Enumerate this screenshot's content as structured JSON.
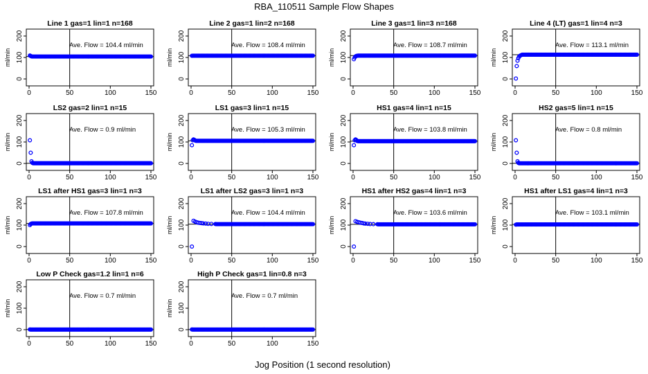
{
  "figure": {
    "title": "RBA_110511  Sample Flow Shapes",
    "xlabel": "Jog Position (1 second resolution)"
  },
  "colors": {
    "points": "#0000ff",
    "axes": "#000000",
    "background": "#ffffff"
  },
  "chart_data": [
    {
      "type": "scatter",
      "title": "Line 1 gas=1 lin=1 n=168",
      "ylabel": "ml/min",
      "annotation": "Ave. Flow = 104.4  ml/min",
      "xlim": [
        0,
        150
      ],
      "ylim": [
        0,
        200
      ],
      "xticks": [
        "0",
        "50",
        "100",
        "150"
      ],
      "yticks": [
        "0",
        "100",
        "200"
      ],
      "vline_x": 50,
      "hline_y": 104.4,
      "points": [
        [
          1,
          109
        ],
        [
          2,
          107
        ],
        [
          3,
          105
        ],
        [
          4,
          104.5
        ],
        [
          5,
          104.4
        ]
      ],
      "steady": [
        5,
        150,
        104.4
      ]
    },
    {
      "type": "scatter",
      "title": "Line 2 gas=1 lin=2 n=168",
      "ylabel": "ml/min",
      "annotation": "Ave. Flow = 108.4  ml/min",
      "xlim": [
        0,
        150
      ],
      "ylim": [
        0,
        200
      ],
      "xticks": [
        "0",
        "50",
        "100",
        "150"
      ],
      "yticks": [
        "0",
        "100",
        "200"
      ],
      "vline_x": 50,
      "hline_y": 108.4,
      "points": [
        [
          1,
          108
        ],
        [
          2,
          108.4
        ]
      ],
      "steady": [
        2,
        150,
        108.4
      ]
    },
    {
      "type": "scatter",
      "title": "Line 3 gas=1 lin=3 n=168",
      "ylabel": "ml/min",
      "annotation": "Ave. Flow = 108.7  ml/min",
      "xlim": [
        0,
        150
      ],
      "ylim": [
        0,
        200
      ],
      "xticks": [
        "0",
        "50",
        "100",
        "150"
      ],
      "yticks": [
        "0",
        "100",
        "200"
      ],
      "vline_x": 50,
      "hline_y": 108.7,
      "points": [
        [
          1,
          92
        ],
        [
          2,
          100
        ],
        [
          3,
          105
        ],
        [
          4,
          107
        ],
        [
          5,
          108
        ]
      ],
      "steady": [
        5,
        150,
        108.7
      ]
    },
    {
      "type": "scatter",
      "title": "Line 4 (LT) gas=1 lin=4 n=3",
      "ylabel": "ml/min",
      "annotation": "Ave. Flow = 113.1  ml/min",
      "xlim": [
        0,
        150
      ],
      "ylim": [
        0,
        200
      ],
      "xticks": [
        "0",
        "50",
        "100",
        "150"
      ],
      "yticks": [
        "0",
        "100",
        "200"
      ],
      "vline_x": 50,
      "hline_y": 113.1,
      "points": [
        [
          1,
          2
        ],
        [
          2,
          60
        ],
        [
          3,
          85
        ],
        [
          4,
          97
        ],
        [
          5,
          104
        ],
        [
          6,
          108
        ],
        [
          7,
          110
        ],
        [
          8,
          112
        ]
      ],
      "steady": [
        8,
        150,
        113.1
      ]
    },
    {
      "type": "scatter",
      "title": "LS2 gas=2 lin=1 n=15",
      "ylabel": "ml/min",
      "annotation": "Ave. Flow =  0.9  ml/min",
      "xlim": [
        0,
        150
      ],
      "ylim": [
        0,
        200
      ],
      "xticks": [
        "0",
        "50",
        "100",
        "150"
      ],
      "yticks": [
        "0",
        "100",
        "200"
      ],
      "vline_x": 50,
      "hline_y": 0.9,
      "points": [
        [
          1,
          108
        ],
        [
          2,
          50
        ],
        [
          3,
          10
        ],
        [
          4,
          3
        ],
        [
          5,
          1
        ]
      ],
      "steady": [
        5,
        150,
        0.9
      ]
    },
    {
      "type": "scatter",
      "title": "LS1 gas=3 lin=1 n=15",
      "ylabel": "ml/min",
      "annotation": "Ave. Flow = 105.3  ml/min",
      "xlim": [
        0,
        150
      ],
      "ylim": [
        0,
        200
      ],
      "xticks": [
        "0",
        "50",
        "100",
        "150"
      ],
      "yticks": [
        "0",
        "100",
        "200"
      ],
      "vline_x": 50,
      "hline_y": 105.3,
      "points": [
        [
          1,
          85
        ],
        [
          2,
          108
        ],
        [
          3,
          112
        ],
        [
          4,
          110
        ],
        [
          5,
          107
        ]
      ],
      "steady": [
        5,
        150,
        105.3
      ]
    },
    {
      "type": "scatter",
      "title": "HS1 gas=4 lin=1 n=15",
      "ylabel": "ml/min",
      "annotation": "Ave. Flow = 103.8  ml/min",
      "xlim": [
        0,
        150
      ],
      "ylim": [
        0,
        200
      ],
      "xticks": [
        "0",
        "50",
        "100",
        "150"
      ],
      "yticks": [
        "0",
        "100",
        "200"
      ],
      "vline_x": 50,
      "hline_y": 103.8,
      "points": [
        [
          1,
          85
        ],
        [
          2,
          108
        ],
        [
          3,
          112
        ],
        [
          4,
          109
        ],
        [
          5,
          105
        ]
      ],
      "steady": [
        5,
        150,
        103.8
      ]
    },
    {
      "type": "scatter",
      "title": "HS2 gas=5 lin=1 n=15",
      "ylabel": "ml/min",
      "annotation": "Ave. Flow =  0.8  ml/min",
      "xlim": [
        0,
        150
      ],
      "ylim": [
        0,
        200
      ],
      "xticks": [
        "0",
        "50",
        "100",
        "150"
      ],
      "yticks": [
        "0",
        "100",
        "200"
      ],
      "vline_x": 50,
      "hline_y": 0.8,
      "points": [
        [
          1,
          108
        ],
        [
          2,
          50
        ],
        [
          3,
          10
        ],
        [
          4,
          3
        ],
        [
          5,
          1
        ]
      ],
      "steady": [
        5,
        150,
        0.8
      ]
    },
    {
      "type": "scatter",
      "title": "LS1 after HS1 gas=3 lin=1 n=3",
      "ylabel": "ml/min",
      "annotation": "Ave. Flow = 107.8  ml/min",
      "xlim": [
        0,
        150
      ],
      "ylim": [
        0,
        200
      ],
      "xticks": [
        "0",
        "50",
        "100",
        "150"
      ],
      "yticks": [
        "0",
        "100",
        "200"
      ],
      "vline_x": 50,
      "hline_y": 107.8,
      "points": [
        [
          1,
          100
        ],
        [
          2,
          105
        ],
        [
          3,
          107
        ]
      ],
      "steady": [
        3,
        150,
        107.8
      ]
    },
    {
      "type": "scatter",
      "title": "LS1 after LS2 gas=3 lin=1 n=3",
      "ylabel": "ml/min",
      "annotation": "Ave. Flow = 104.4  ml/min",
      "xlim": [
        0,
        150
      ],
      "ylim": [
        0,
        200
      ],
      "xticks": [
        "0",
        "50",
        "100",
        "150"
      ],
      "yticks": [
        "0",
        "100",
        "200"
      ],
      "vline_x": 50,
      "hline_y": 104.4,
      "points": [
        [
          1,
          0
        ],
        [
          3,
          120
        ],
        [
          5,
          116
        ],
        [
          7,
          113
        ],
        [
          9,
          111
        ],
        [
          11,
          110
        ],
        [
          13,
          109
        ],
        [
          15,
          108
        ],
        [
          18,
          107
        ],
        [
          21,
          106
        ],
        [
          25,
          105.5
        ],
        [
          30,
          105
        ]
      ],
      "steady": [
        30,
        150,
        104.4
      ]
    },
    {
      "type": "scatter",
      "title": "HS1 after HS2 gas=4 lin=1 n=3",
      "ylabel": "ml/min",
      "annotation": "Ave. Flow = 103.6  ml/min",
      "xlim": [
        0,
        150
      ],
      "ylim": [
        0,
        200
      ],
      "xticks": [
        "0",
        "50",
        "100",
        "150"
      ],
      "yticks": [
        "0",
        "100",
        "200"
      ],
      "vline_x": 50,
      "hline_y": 103.6,
      "points": [
        [
          1,
          0
        ],
        [
          3,
          118
        ],
        [
          5,
          115
        ],
        [
          7,
          113
        ],
        [
          9,
          111
        ],
        [
          11,
          110
        ],
        [
          13,
          108
        ],
        [
          15,
          107
        ],
        [
          18,
          106
        ],
        [
          21,
          105
        ],
        [
          25,
          104.5
        ],
        [
          30,
          104
        ]
      ],
      "steady": [
        30,
        150,
        103.6
      ]
    },
    {
      "type": "scatter",
      "title": "HS1 after LS1 gas=4 lin=1 n=3",
      "ylabel": "ml/min",
      "annotation": "Ave. Flow = 103.1  ml/min",
      "xlim": [
        0,
        150
      ],
      "ylim": [
        0,
        200
      ],
      "xticks": [
        "0",
        "50",
        "100",
        "150"
      ],
      "yticks": [
        "0",
        "100",
        "200"
      ],
      "vline_x": 50,
      "hline_y": 103.1,
      "points": [
        [
          1,
          102
        ],
        [
          2,
          103
        ]
      ],
      "steady": [
        2,
        150,
        103.1
      ]
    },
    {
      "type": "scatter",
      "title": "Low P Check gas=1.2 lin=1 n=6",
      "ylabel": "ml/min",
      "annotation": "Ave. Flow =  0.7  ml/min",
      "xlim": [
        0,
        150
      ],
      "ylim": [
        0,
        200
      ],
      "xticks": [
        "0",
        "50",
        "100",
        "150"
      ],
      "yticks": [
        "0",
        "100",
        "200"
      ],
      "vline_x": 50,
      "hline_y": 0.7,
      "points": [
        [
          1,
          1
        ],
        [
          2,
          0.7
        ]
      ],
      "steady": [
        2,
        150,
        0.7
      ]
    },
    {
      "type": "scatter",
      "title": "High P Check gas=1 lin=0.8 n=3",
      "ylabel": "ml/min",
      "annotation": "Ave. Flow =  0.7  ml/min",
      "xlim": [
        0,
        150
      ],
      "ylim": [
        0,
        200
      ],
      "xticks": [
        "0",
        "50",
        "100",
        "150"
      ],
      "yticks": [
        "0",
        "100",
        "200"
      ],
      "vline_x": 50,
      "hline_y": 0.7,
      "points": [
        [
          1,
          1
        ],
        [
          2,
          0.7
        ]
      ],
      "steady": [
        2,
        150,
        0.7
      ]
    }
  ]
}
